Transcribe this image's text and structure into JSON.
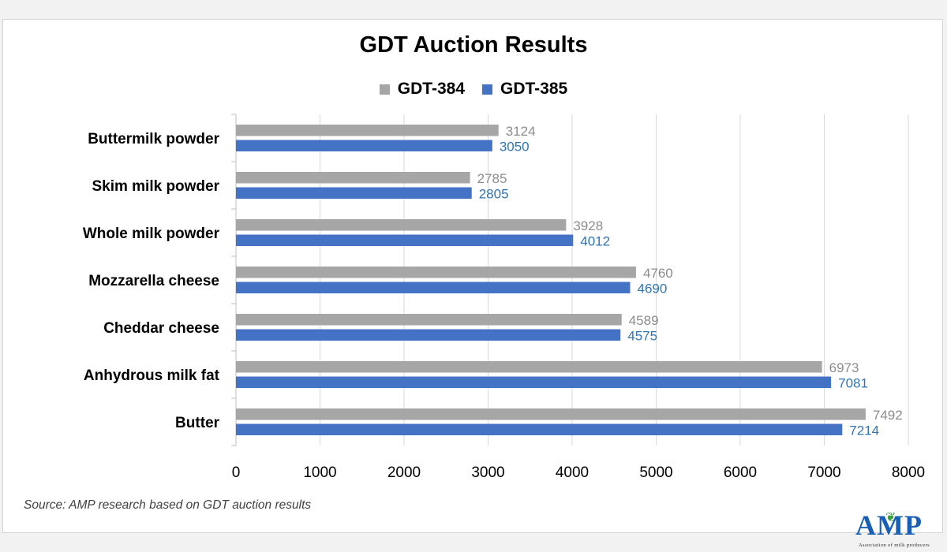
{
  "chart_data": {
    "type": "bar",
    "orientation": "horizontal",
    "title": "GDT Auction Results",
    "categories": [
      "Buttermilk powder",
      "Skim milk powder",
      "Whole milk powder",
      "Mozzarella cheese",
      "Cheddar cheese",
      "Anhydrous milk fat",
      "Butter"
    ],
    "series": [
      {
        "name": "GDT-384",
        "values": [
          3124,
          2785,
          3928,
          4760,
          4589,
          6973,
          7492
        ],
        "color": "#a6a6a6",
        "label_color": "#8c8c8c"
      },
      {
        "name": "GDT-385",
        "values": [
          3050,
          2805,
          4012,
          4690,
          4575,
          7081,
          7214
        ],
        "color": "#4472c4",
        "label_color": "#2e75b6"
      }
    ],
    "xlim": [
      0,
      8000
    ],
    "xticks": [
      "0",
      "1000",
      "2000",
      "3000",
      "4000",
      "5000",
      "6000",
      "7000",
      "8000"
    ],
    "grid": true,
    "legend_position": "top"
  },
  "source_note": "Source: AMP research based on GDT auction results",
  "logo": {
    "text": "AMP",
    "subtitle": "Association of milk producers"
  }
}
